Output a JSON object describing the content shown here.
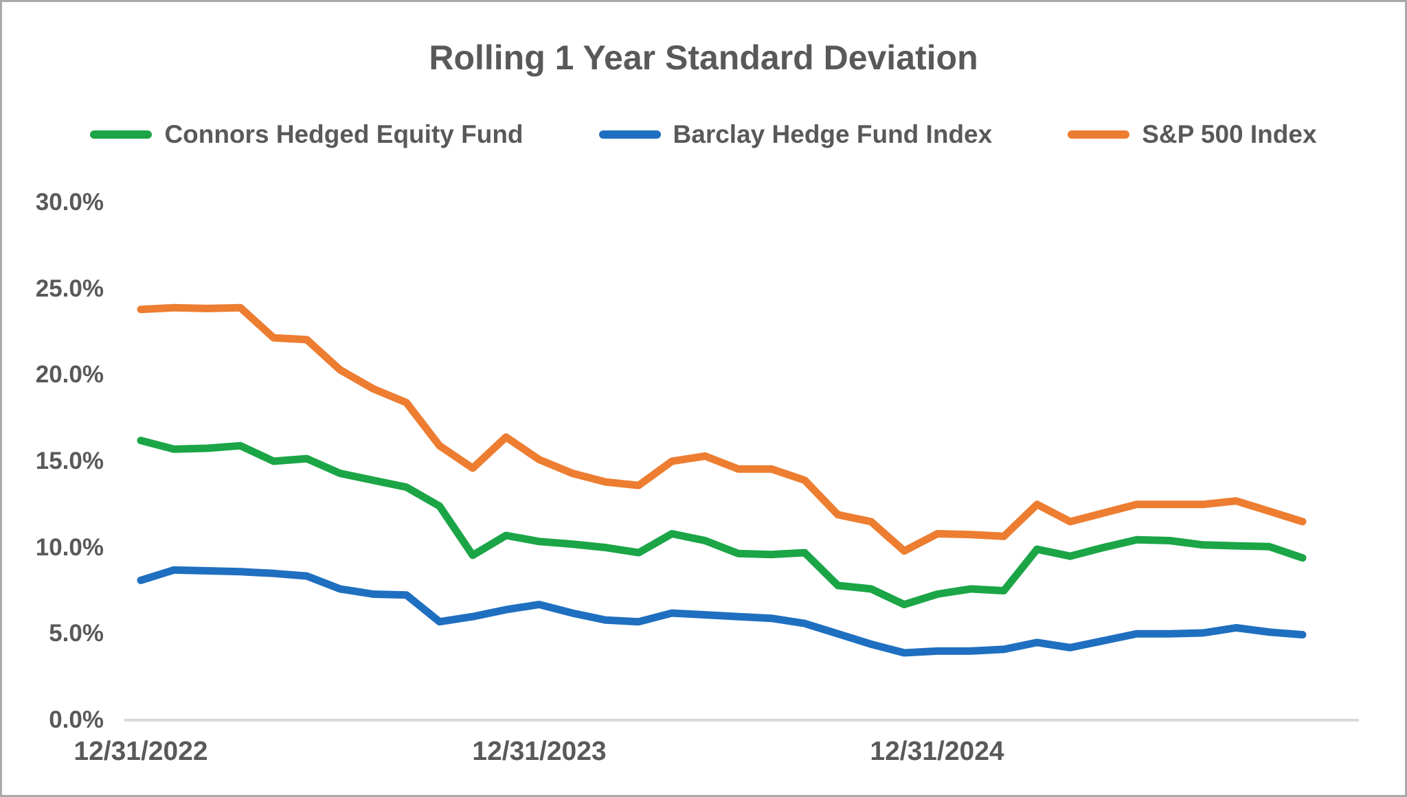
{
  "chart": {
    "title": "Rolling 1 Year Standard Deviation",
    "y_ticks": [
      "30.0%",
      "25.0%",
      "20.0%",
      "15.0%",
      "10.0%",
      "5.0%",
      "0.0%"
    ],
    "x_ticks": [
      "12/31/2022",
      "12/31/2023",
      "12/31/2024"
    ],
    "colors": {
      "text": "#595959",
      "axis_line": "#d9d9d9"
    }
  },
  "chart_data": {
    "type": "line",
    "x_unit": "month",
    "x_start_label": "12/31/2022",
    "x_point_count": 36,
    "x_axis_ticks": [
      {
        "label": "12/31/2022",
        "index": 0
      },
      {
        "label": "12/31/2023",
        "index": 12
      },
      {
        "label": "12/31/2024",
        "index": 24
      }
    ],
    "ylim": [
      0,
      30
    ],
    "ytick_step": 5,
    "grid": "off",
    "legend_position": "top",
    "series": [
      {
        "name": "Connors Hedged Equity Fund",
        "color": "#1ba546",
        "values": [
          16.2,
          15.7,
          15.75,
          15.9,
          15.0,
          15.15,
          14.3,
          13.9,
          13.5,
          12.4,
          9.55,
          10.7,
          10.35,
          10.2,
          10.0,
          9.7,
          10.8,
          10.4,
          9.65,
          9.6,
          9.7,
          7.8,
          7.6,
          6.7,
          7.3,
          7.6,
          7.5,
          9.9,
          9.5,
          10.0,
          10.45,
          10.4,
          10.15,
          10.1,
          10.05,
          9.4
        ]
      },
      {
        "name": "Barclay Hedge Fund Index",
        "color": "#1f6fc0",
        "values": [
          8.1,
          8.7,
          8.65,
          8.6,
          8.5,
          8.35,
          7.6,
          7.3,
          7.25,
          5.7,
          6.0,
          6.4,
          6.7,
          6.2,
          5.8,
          5.7,
          6.2,
          6.1,
          6.0,
          5.9,
          5.6,
          5.0,
          4.4,
          3.9,
          4.0,
          4.0,
          4.1,
          4.5,
          4.2,
          4.6,
          5.0,
          5.0,
          5.05,
          5.35,
          5.1,
          4.95
        ]
      },
      {
        "name": "S&P 500 Index",
        "color": "#ed7d31",
        "values": [
          23.8,
          23.9,
          23.85,
          23.9,
          22.15,
          22.05,
          20.3,
          19.2,
          18.4,
          15.9,
          14.6,
          16.4,
          15.1,
          14.3,
          13.8,
          13.6,
          15.0,
          15.3,
          14.55,
          14.55,
          13.9,
          11.9,
          11.5,
          9.8,
          10.8,
          10.75,
          10.65,
          12.5,
          11.5,
          12.0,
          12.5,
          12.5,
          12.5,
          12.7,
          12.1,
          11.5
        ]
      }
    ]
  }
}
